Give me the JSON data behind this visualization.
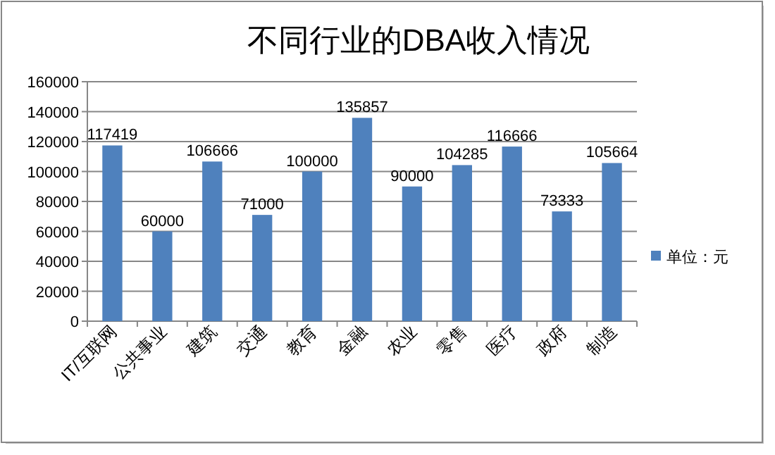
{
  "chart_data": {
    "type": "bar",
    "title": "不同行业的DBA收入情况",
    "categories": [
      "IT/互联网",
      "公共事业",
      "建筑",
      "交通",
      "教育",
      "金融",
      "农业",
      "零售",
      "医疗",
      "政府",
      "制造"
    ],
    "series": [
      {
        "name": "单位：元",
        "color": "#4f81bd",
        "values": [
          117419,
          60000,
          106666,
          71000,
          100000,
          135857,
          90000,
          104285,
          116666,
          73333,
          105664
        ]
      }
    ],
    "ylim": [
      0,
      160000
    ],
    "yticks": [
      0,
      20000,
      40000,
      60000,
      80000,
      100000,
      120000,
      140000,
      160000
    ],
    "grid": "y",
    "legend": "right",
    "data_labels": true
  }
}
